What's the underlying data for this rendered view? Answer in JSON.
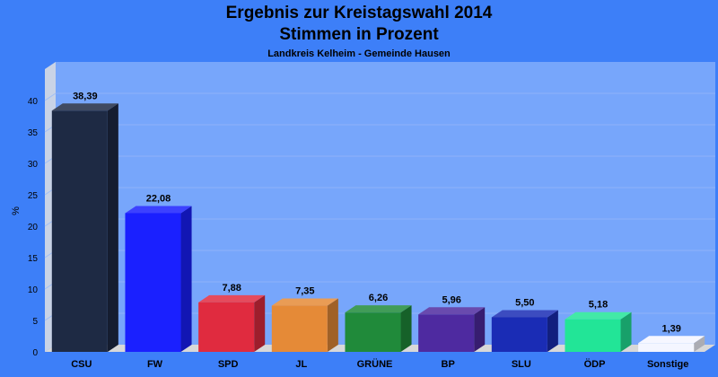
{
  "chart_data": {
    "type": "bar",
    "title": "Ergebnis zur Kreistagswahl 2014",
    "title_line2": "Stimmen in Prozent",
    "subtitle": "Landkreis Kelheim - Gemeinde Hausen",
    "xlabel": "",
    "ylabel": "%",
    "ylim": [
      0,
      45
    ],
    "yticks": [
      0,
      5,
      10,
      15,
      20,
      25,
      30,
      35,
      40
    ],
    "grid": true,
    "legend": "none",
    "categories": [
      "CSU",
      "FW",
      "SPD",
      "JL",
      "GRÜNE",
      "BP",
      "SLU",
      "ÖDP",
      "Sonstige"
    ],
    "values": [
      38.39,
      22.08,
      7.88,
      7.35,
      6.26,
      5.96,
      5.5,
      5.18,
      1.39
    ],
    "value_labels": [
      "38,39",
      "22,08",
      "7,88",
      "7,35",
      "6,26",
      "5,96",
      "5,50",
      "5,18",
      "1,39"
    ],
    "colors": [
      "#1e2a44",
      "#1a20ff",
      "#e02b3f",
      "#e58a37",
      "#208a3a",
      "#4e2aa0",
      "#1a2cb5",
      "#22e597",
      "#f4f6ff"
    ]
  }
}
